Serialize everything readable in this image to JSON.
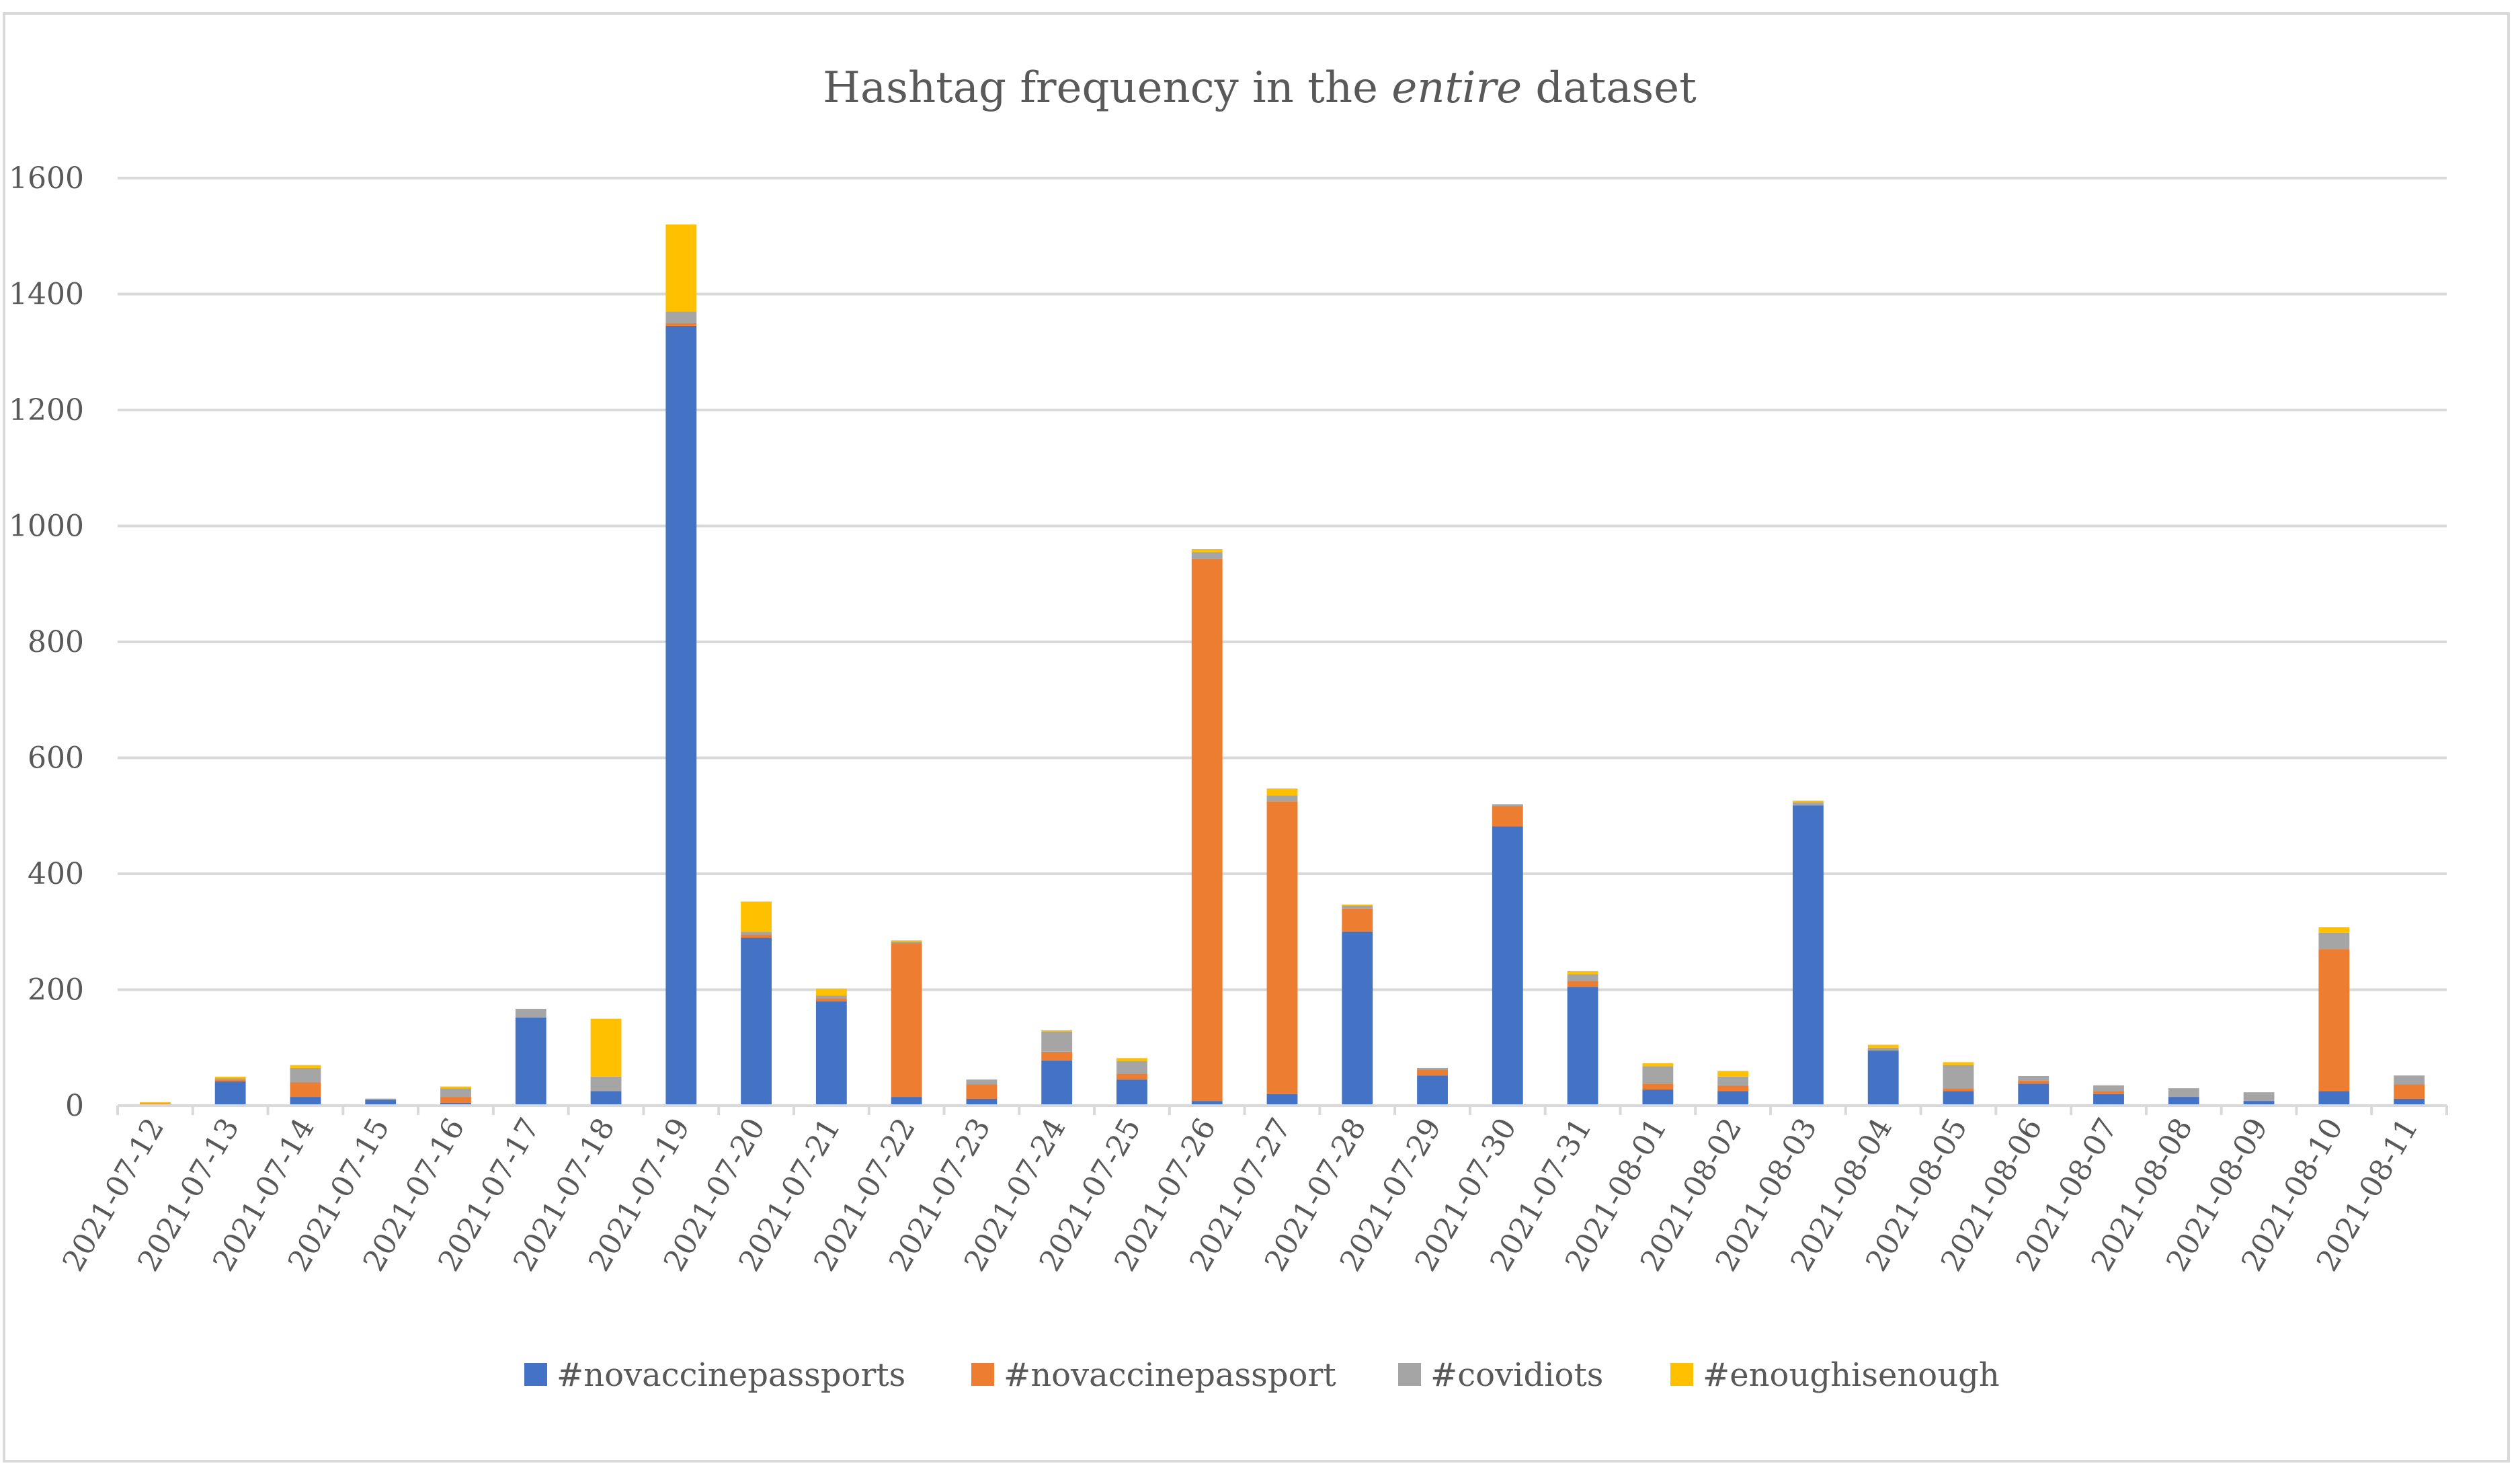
{
  "chart_data": {
    "type": "bar",
    "stacked": true,
    "title": "Hashtag frequency in the entire dataset",
    "title_parts": [
      {
        "text": "Hashtag frequency in the ",
        "italic": false
      },
      {
        "text": "entire",
        "italic": true
      },
      {
        "text": " dataset",
        "italic": false
      }
    ],
    "xlabel": "",
    "ylabel": "",
    "ylim": [
      0,
      1600
    ],
    "yticks": [
      "0",
      "200",
      "400",
      "600",
      "800",
      "1000",
      "1200",
      "1400",
      "1600"
    ],
    "grid": true,
    "legend_position": "bottom",
    "categories": [
      "2021-07-12",
      "2021-07-13",
      "2021-07-14",
      "2021-07-15",
      "2021-07-16",
      "2021-07-17",
      "2021-07-18",
      "2021-07-19",
      "2021-07-20",
      "2021-07-21",
      "2021-07-22",
      "2021-07-23",
      "2021-07-24",
      "2021-07-25",
      "2021-07-26",
      "2021-07-27",
      "2021-07-28",
      "2021-07-29",
      "2021-07-30",
      "2021-07-31",
      "2021-08-01",
      "2021-08-02",
      "2021-08-03",
      "2021-08-04",
      "2021-08-05",
      "2021-08-06",
      "2021-08-07",
      "2021-08-08",
      "2021-08-09",
      "2021-08-10",
      "2021-08-11"
    ],
    "series": [
      {
        "name": "#novaccinepassports",
        "color": "#4472c4",
        "values": [
          2,
          42,
          15,
          10,
          5,
          152,
          25,
          1345,
          290,
          180,
          15,
          12,
          78,
          45,
          8,
          20,
          300,
          52,
          482,
          205,
          28,
          25,
          518,
          95,
          25,
          38,
          20,
          15,
          8,
          25,
          12
        ]
      },
      {
        "name": "#novaccinepassport",
        "color": "#ed7d31",
        "values": [
          1,
          3,
          25,
          0,
          10,
          0,
          0,
          5,
          5,
          5,
          265,
          25,
          15,
          10,
          935,
          505,
          40,
          10,
          35,
          10,
          10,
          10,
          0,
          0,
          5,
          5,
          5,
          0,
          0,
          245,
          25
        ]
      },
      {
        "name": "#covidiots",
        "color": "#a5a5a5",
        "values": [
          1,
          2,
          25,
          2,
          15,
          15,
          25,
          20,
          5,
          5,
          3,
          8,
          35,
          22,
          12,
          10,
          5,
          3,
          3,
          12,
          30,
          15,
          5,
          5,
          40,
          8,
          10,
          15,
          15,
          28,
          15
        ]
      },
      {
        "name": "#enoughisenough",
        "color": "#ffc000",
        "values": [
          2,
          3,
          5,
          0,
          3,
          0,
          100,
          150,
          52,
          12,
          2,
          0,
          2,
          5,
          5,
          12,
          2,
          0,
          0,
          5,
          5,
          10,
          3,
          5,
          5,
          0,
          0,
          0,
          0,
          10,
          0
        ]
      }
    ]
  }
}
